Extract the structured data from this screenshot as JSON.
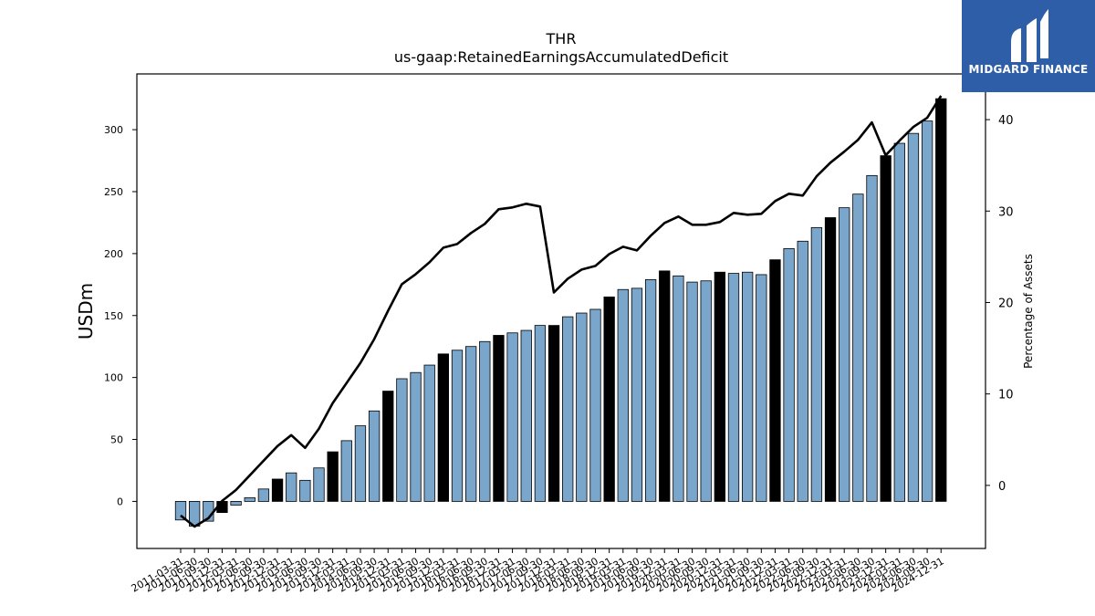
{
  "brand": {
    "name": "MIDGARD FINANCE",
    "bg": "#2f5ea8",
    "fg": "#ffffff",
    "icon": "midgard-logo-icon"
  },
  "chart_data": {
    "type": "bar",
    "title": "THR",
    "subtitle": "us-gaap:RetainedEarningsAccumulatedDeficit",
    "ylabel": "USDm",
    "ylabel_right": "Percentage of Assets",
    "ylim": [
      -38,
      345
    ],
    "ylim_right": [
      -6.9,
      45
    ],
    "yticks": [
      0,
      50,
      100,
      150,
      200,
      250,
      300
    ],
    "yticks_right": [
      0,
      10,
      20,
      30,
      40
    ],
    "bar_color": "#7aa6cc",
    "highlight_color": "#000000",
    "line_color": "#000000",
    "categories": [
      "2011-03-31",
      "2011-06-30",
      "2011-09-30",
      "2011-12-31",
      "2012-03-31",
      "2012-06-30",
      "2012-09-30",
      "2012-12-31",
      "2013-03-31",
      "2013-06-30",
      "2013-09-30",
      "2013-12-31",
      "2014-03-31",
      "2014-06-30",
      "2014-09-30",
      "2014-12-31",
      "2015-03-31",
      "2015-06-30",
      "2015-09-30",
      "2015-12-31",
      "2016-03-31",
      "2016-06-30",
      "2016-09-30",
      "2016-12-31",
      "2017-03-31",
      "2017-06-30",
      "2017-09-30",
      "2017-12-31",
      "2018-03-31",
      "2018-06-30",
      "2018-09-30",
      "2018-12-31",
      "2019-03-31",
      "2019-06-30",
      "2019-09-30",
      "2019-12-31",
      "2020-03-31",
      "2020-06-30",
      "2020-09-30",
      "2020-12-31",
      "2021-03-31",
      "2021-06-30",
      "2021-09-30",
      "2021-12-31",
      "2022-03-31",
      "2022-06-30",
      "2022-09-30",
      "2022-12-31",
      "2023-03-31",
      "2023-06-30",
      "2023-09-30",
      "2023-12-31",
      "2024-03-31",
      "2024-06-30",
      "2024-09-30",
      "2024-12-31"
    ],
    "tick_labels": [
      "2011-03-31",
      "2011-06-30",
      "2011-09-30",
      "2011-12-31",
      "2012-03-31",
      "2012-06-30",
      "2012-09-30",
      "2012-12-31",
      "2013-03-31",
      "2013-06-30",
      "2013-09-30",
      "2013-12-31",
      "2014-03-31",
      "2014-06-30",
      "2014-09-30",
      "2014-12-31",
      "2015-03-31",
      "2015-06-30",
      "2015-09-30",
      "2015-12-31",
      "2016-03-31",
      "2016-06-30",
      "2016-09-30",
      "2016-12-31",
      "2017-03-31",
      "2017-06-30",
      "2017-09-30",
      "2017-12-31",
      "2018-03-31",
      "2018-06-30",
      "2018-09-30",
      "2018-12-31",
      "2019-03-31",
      "2019-06-30",
      "2019-09-30",
      "2019-12-31",
      "2020-03-31",
      "2020-06-30",
      "2020-09-30",
      "2020-12-31",
      "2021-03-31",
      "2021-06-30",
      "2021-09-30",
      "2021-12-31",
      "2022-03-31",
      "2022-06-30",
      "2022-09-30",
      "2022-12-31",
      "2023-03-31",
      "2023-06-30",
      "2023-09-30",
      "2023-12-31",
      "2024-03-31",
      "2024-06-30",
      "2024-09-30",
      "2024-12-31"
    ],
    "series": [
      {
        "type": "bar",
        "axis": "left",
        "values": [
          -15,
          -20,
          -16,
          -9,
          -3,
          3,
          10,
          18,
          23,
          17,
          27,
          40,
          49,
          61,
          73,
          89,
          99,
          104,
          110,
          119,
          122,
          125,
          129,
          134,
          136,
          138,
          142,
          142,
          149,
          152,
          155,
          165,
          171,
          172,
          179,
          186,
          182,
          177,
          178,
          185,
          184,
          185,
          183,
          195,
          204,
          210,
          221,
          229,
          237,
          248,
          263,
          279,
          289,
          297,
          307,
          325
        ],
        "highlight": [
          false,
          false,
          false,
          true,
          false,
          false,
          false,
          true,
          false,
          false,
          false,
          true,
          false,
          false,
          false,
          true,
          false,
          false,
          false,
          true,
          false,
          false,
          false,
          true,
          false,
          false,
          false,
          true,
          false,
          false,
          false,
          true,
          false,
          false,
          false,
          true,
          false,
          false,
          false,
          true,
          false,
          false,
          false,
          true,
          false,
          false,
          false,
          true,
          false,
          false,
          false,
          true,
          false,
          false,
          false,
          true
        ]
      },
      {
        "type": "line",
        "axis": "right",
        "values": [
          -3.3,
          -4.5,
          -3.6,
          -1.7,
          -0.5,
          1.1,
          2.7,
          4.3,
          5.5,
          4.1,
          6.2,
          9.0,
          11.2,
          13.4,
          16.0,
          19.1,
          22.0,
          23.1,
          24.4,
          26.0,
          26.4,
          27.6,
          28.6,
          30.2,
          30.4,
          30.8,
          30.5,
          21.1,
          22.6,
          23.6,
          24.0,
          25.3,
          26.1,
          25.7,
          27.3,
          28.7,
          29.4,
          28.5,
          28.5,
          28.8,
          29.8,
          29.6,
          29.7,
          31.1,
          31.9,
          31.7,
          33.8,
          35.3,
          36.5,
          37.8,
          39.7,
          36.1,
          37.7,
          39.2,
          40.2,
          42.6
        ]
      }
    ]
  }
}
